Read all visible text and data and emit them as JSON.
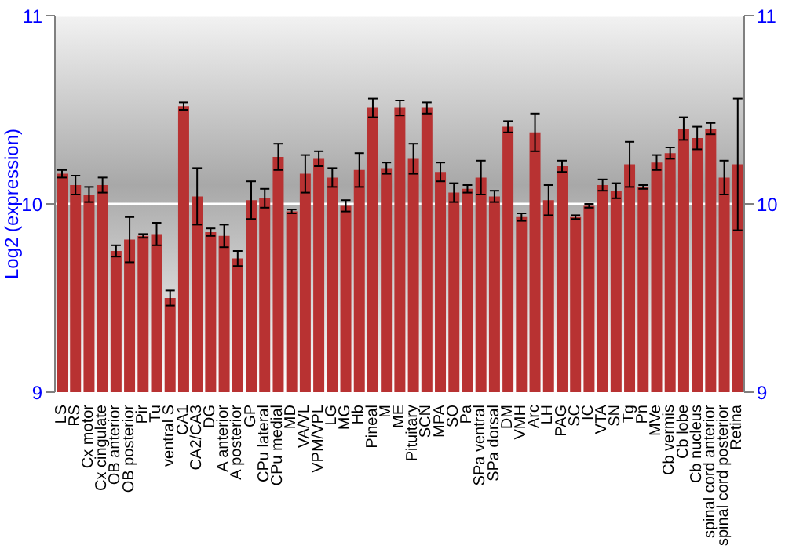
{
  "chart_data": {
    "type": "bar",
    "ylabel": "Log2 (expression)",
    "categories": [
      "LS",
      "RS",
      "Cx motor",
      "Cx cingulate",
      "OB anterior",
      "OB posterior",
      "Pir",
      "Tu",
      "ventral S",
      "CA1",
      "CA2/CA3",
      "DG",
      "A anterior",
      "A posterior",
      "GP",
      "CPu lateral",
      "CPu medial",
      "MD",
      "VA/VL",
      "VPM/VPL",
      "LG",
      "MG",
      "Hb",
      "Pineal",
      "M",
      "ME",
      "Pituitary",
      "SCN",
      "MPA",
      "SO",
      "Pa",
      "SPa ventral",
      "SPa dorsal",
      "DM",
      "VMH",
      "Arc",
      "LH",
      "PAG",
      "SC",
      "IC",
      "VTA",
      "SN",
      "Tg",
      "Pn",
      "MVe",
      "Cb vermis",
      "Cb lobe",
      "Cb nucleus",
      "spinal cord anterior",
      "spinal cord posterior",
      "Retina"
    ],
    "series": [
      {
        "color": "#b83232",
        "values": [
          10.16,
          10.1,
          10.05,
          10.1,
          9.75,
          9.81,
          9.83,
          9.84,
          9.5,
          10.52,
          10.04,
          9.85,
          9.83,
          9.71,
          10.02,
          10.03,
          10.25,
          9.96,
          10.16,
          10.24,
          10.14,
          9.99,
          10.18,
          10.51,
          10.19,
          10.51,
          10.24,
          10.51,
          10.17,
          10.06,
          10.08,
          10.14,
          10.04,
          10.41,
          9.93,
          10.38,
          10.02,
          10.2,
          9.93,
          9.99,
          10.1,
          10.07,
          10.21,
          10.09,
          10.22,
          10.27,
          10.4,
          10.35,
          10.4,
          10.14,
          10.21
        ],
        "errors": [
          0.02,
          0.05,
          0.04,
          0.04,
          0.03,
          0.12,
          0.01,
          0.06,
          0.04,
          0.02,
          0.15,
          0.02,
          0.06,
          0.04,
          0.1,
          0.05,
          0.07,
          0.01,
          0.1,
          0.04,
          0.05,
          0.03,
          0.09,
          0.05,
          0.03,
          0.04,
          0.08,
          0.03,
          0.05,
          0.05,
          0.02,
          0.09,
          0.03,
          0.03,
          0.02,
          0.1,
          0.08,
          0.03,
          0.01,
          0.01,
          0.03,
          0.04,
          0.12,
          0.01,
          0.04,
          0.03,
          0.06,
          0.06,
          0.03,
          0.09,
          0.35
        ]
      }
    ],
    "ylim": [
      9,
      11
    ],
    "yticks": [
      9,
      10,
      11
    ],
    "y2lim": [
      9,
      11
    ],
    "y2ticks": [
      9,
      10,
      11
    ],
    "grid": "y"
  }
}
